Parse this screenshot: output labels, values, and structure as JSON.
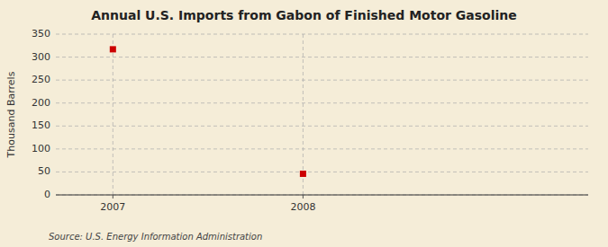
{
  "chart_data": {
    "type": "scatter",
    "title": "Annual U.S. Imports from Gabon of Finished Motor Gasoline",
    "y_label": "Thousand Barrels",
    "annotations": [
      "Source: U.S. Energy Information Administration"
    ],
    "x": [
      2007,
      2008
    ],
    "values": [
      317,
      46
    ],
    "color": "#cc0000",
    "marker": "square",
    "xlim": [
      2006.7,
      2009.5
    ],
    "xticks": [
      2007,
      2008
    ],
    "ylim": [
      0,
      350
    ],
    "yticks": [
      0,
      50,
      100,
      150,
      200,
      250,
      300,
      350
    ],
    "grid": true
  }
}
